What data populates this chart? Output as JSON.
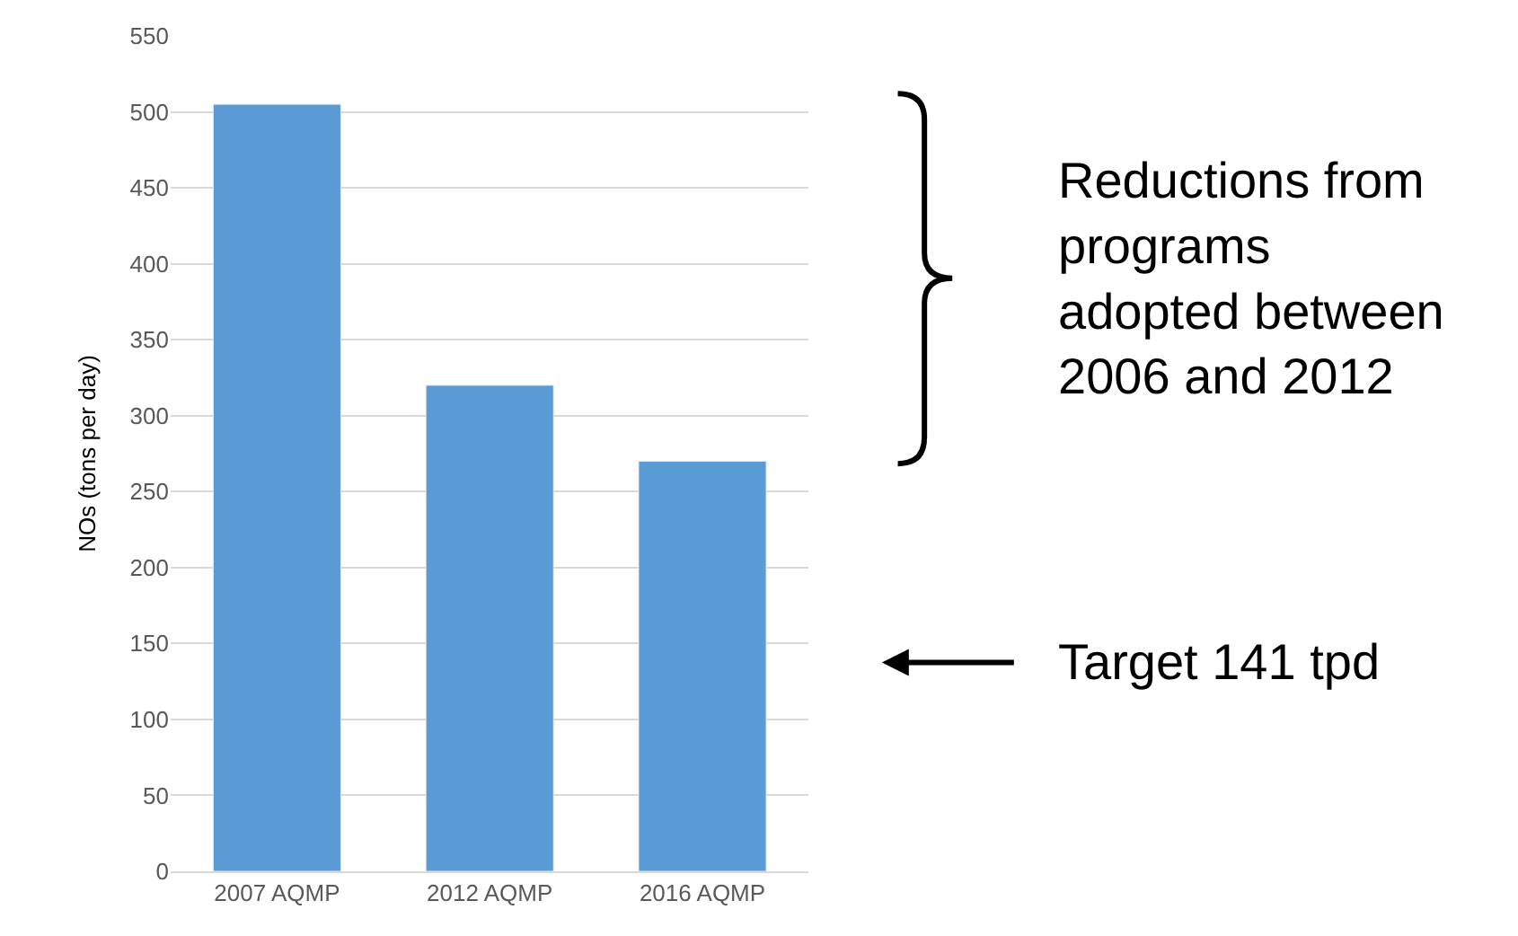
{
  "chart_data": {
    "type": "bar",
    "ylabel": "NOs (tons per day)",
    "categories": [
      "2007 AQMP",
      "2012 AQMP",
      "2016 AQMP"
    ],
    "values": [
      505,
      320,
      270
    ],
    "color": "#5b9bd5",
    "ylim": [
      0,
      550
    ],
    "yticks": [
      0,
      50,
      100,
      150,
      200,
      250,
      300,
      350,
      400,
      450,
      500,
      550
    ],
    "grid": "y",
    "legend": false,
    "annotations": [
      "Reductions from\nprograms\nadopted between\n2006 and 2012",
      "Target 141 tpd"
    ]
  }
}
